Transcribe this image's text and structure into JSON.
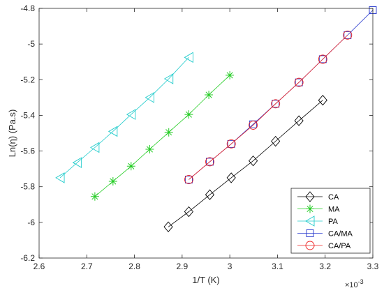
{
  "chart_data": {
    "type": "line",
    "xlabel": "1/T (K)",
    "ylabel": "Ln(η) (Pa.s)",
    "x_exponent_label": "×10",
    "x_exponent_power": "-3",
    "xlim": [
      2.6,
      3.3
    ],
    "ylim": [
      -6.2,
      -4.8
    ],
    "xticks": [
      "2.6",
      "2.7",
      "2.8",
      "2.9",
      "3",
      "3.1",
      "3.2",
      "3.3"
    ],
    "yticks": [
      "-6.2",
      "-6",
      "-5.8",
      "-5.6",
      "-5.4",
      "-5.2",
      "-5",
      "-4.8"
    ],
    "grid": false,
    "legend_position": "bottom-right",
    "series": [
      {
        "name": "CA",
        "color": "#000000",
        "marker": "diamond",
        "x": [
          2.871,
          2.914,
          2.958,
          3.003,
          3.049,
          3.096,
          3.145,
          3.195
        ],
        "y": [
          -6.025,
          -5.94,
          -5.845,
          -5.75,
          -5.655,
          -5.545,
          -5.43,
          -5.315
        ]
      },
      {
        "name": "MA",
        "color": "#22cc22",
        "marker": "asterisk",
        "x": [
          2.717,
          2.755,
          2.793,
          2.832,
          2.872,
          2.914,
          2.956,
          3.0
        ],
        "y": [
          -5.855,
          -5.77,
          -5.685,
          -5.59,
          -5.495,
          -5.395,
          -5.285,
          -5.175
        ]
      },
      {
        "name": "PA",
        "color": "#22cccc",
        "marker": "triangle-left",
        "x": [
          2.644,
          2.68,
          2.717,
          2.755,
          2.793,
          2.832,
          2.872,
          2.914
        ],
        "y": [
          -5.75,
          -5.665,
          -5.58,
          -5.49,
          -5.395,
          -5.3,
          -5.195,
          -5.075
        ]
      },
      {
        "name": "CA/MA",
        "color": "#2233cc",
        "marker": "square",
        "x": [
          2.914,
          2.958,
          3.003,
          3.049,
          3.096,
          3.145,
          3.195,
          3.247,
          3.3
        ],
        "y": [
          -5.76,
          -5.66,
          -5.56,
          -5.45,
          -5.335,
          -5.215,
          -5.085,
          -4.95,
          -4.81
        ]
      },
      {
        "name": "CA/PA",
        "color": "#ee2222",
        "marker": "circle",
        "x": [
          2.914,
          2.958,
          3.003,
          3.049,
          3.096,
          3.145,
          3.195,
          3.247
        ],
        "y": [
          -5.76,
          -5.66,
          -5.56,
          -5.455,
          -5.335,
          -5.215,
          -5.085,
          -4.95
        ]
      }
    ]
  }
}
